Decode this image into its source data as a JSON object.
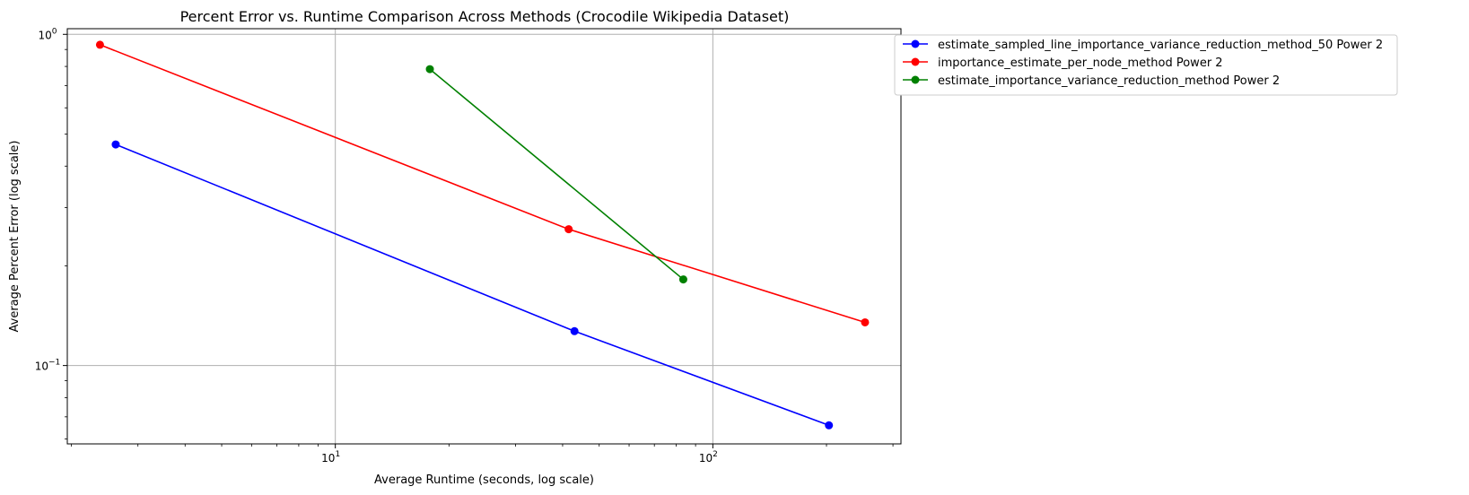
{
  "chart_data": {
    "type": "line",
    "title": "Percent Error vs. Runtime Comparison Across Methods (Crocodile Wikipedia Dataset)",
    "xlabel": "Average Runtime (seconds, log scale)",
    "ylabel": "Average Percent Error (log scale)",
    "xscale": "log",
    "yscale": "log",
    "xlim": [
      1.95,
      315
    ],
    "ylim": [
      0.058,
      1.04
    ],
    "grid": true,
    "legend_position": "outside top-right",
    "x_ticks": [
      {
        "value": 10,
        "base": "10",
        "exp": "1"
      },
      {
        "value": 100,
        "base": "10",
        "exp": "2"
      }
    ],
    "y_ticks": [
      {
        "value": 0.1,
        "base": "10",
        "exp": "−1"
      },
      {
        "value": 1,
        "base": "10",
        "exp": "0"
      }
    ],
    "series": [
      {
        "name": "estimate_sampled_line_importance_variance_reduction_method_50 Power 2",
        "color": "#0000ff",
        "marker": "circle",
        "x": [
          2.62,
          43.0,
          203.0
        ],
        "y": [
          0.465,
          0.127,
          0.066
        ]
      },
      {
        "name": "importance_estimate_per_node_method Power 2",
        "color": "#ff0000",
        "marker": "circle",
        "x": [
          2.38,
          41.5,
          253.0
        ],
        "y": [
          0.93,
          0.258,
          0.135
        ]
      },
      {
        "name": "estimate_importance_variance_reduction_method Power 2",
        "color": "#008000",
        "marker": "circle",
        "x": [
          17.8,
          83.5
        ],
        "y": [
          0.785,
          0.182
        ]
      }
    ]
  }
}
